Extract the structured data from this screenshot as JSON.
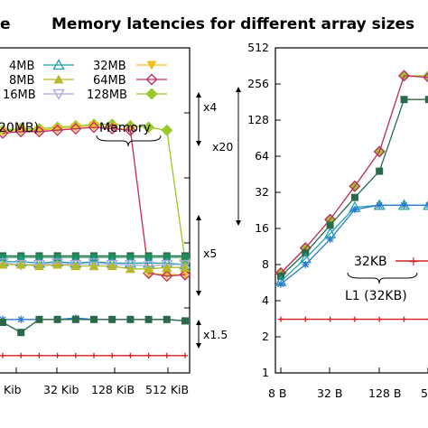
{
  "chart_data": {
    "type": "line",
    "title": "Memory latencies for different array sizes",
    "title_prefix": "e",
    "colors": {
      "4MB": "#1f8a5a",
      "8MB": "#b5b82a",
      "16MB": "#d9d23a",
      "32MB": "#1fa0b0",
      "64MB": "#c0306a",
      "128MB": "#a8a8e0",
      "gold": "#f0c020",
      "green": "#9ac82a",
      "dark": "#2a6a4a",
      "blue": "#2a7ad0",
      "red": "#d02020"
    },
    "left_panel": {
      "x_ticks": [
        "Kib",
        "32 Kib",
        "128 KiB",
        "512 KiB"
      ],
      "annotations": [
        "20MB)",
        "Memory"
      ],
      "side_annotations": [
        "x4",
        "x20",
        "x5",
        "x1.5"
      ],
      "legend": [
        {
          "name": "4MB",
          "marker": "square"
        },
        {
          "name": "8MB",
          "marker": "triangle"
        },
        {
          "name": "16MB",
          "marker": "square-open"
        },
        {
          "name": "32MB",
          "marker": "triangle-open"
        },
        {
          "name": "64MB",
          "marker": "diamond-open"
        },
        {
          "name": "128MB",
          "marker": "triangle-down-open"
        },
        {
          "name": "",
          "marker": "triangle-down"
        },
        {
          "name": "",
          "marker": "diamond"
        }
      ],
      "series": [
        {
          "key": "green",
          "values": [
            168,
            169,
            169,
            170,
            171,
            172,
            172,
            171,
            170,
            168,
            78
          ]
        },
        {
          "key": "gold",
          "values": [
            167,
            168,
            168,
            169,
            170,
            171,
            170,
            168,
            69,
            68,
            68
          ]
        },
        {
          "key": "64MB",
          "values": [
            166,
            167,
            167,
            168,
            169,
            170,
            169,
            168,
            69,
            67,
            68
          ]
        },
        {
          "key": "dark",
          "values": [
            81,
            81,
            81,
            81,
            81,
            81,
            81,
            81,
            81,
            81,
            81
          ]
        },
        {
          "key": "4MB",
          "values": [
            80,
            80,
            80,
            80,
            80,
            80,
            80,
            80,
            80,
            80,
            80
          ]
        },
        {
          "key": "32MB",
          "values": [
            77,
            77,
            76,
            77,
            76,
            77,
            76,
            76,
            76,
            76,
            75
          ]
        },
        {
          "key": "128MB",
          "values": [
            76,
            75,
            75,
            76,
            75,
            76,
            75,
            75,
            74,
            75,
            75
          ]
        },
        {
          "key": "8MB",
          "values": [
            75,
            75,
            74,
            75,
            74,
            74,
            74,
            72,
            72,
            73,
            73
          ]
        },
        {
          "key": "blue",
          "values": [
            37,
            37,
            37,
            37,
            38,
            37,
            37,
            37,
            37,
            37,
            36
          ]
        },
        {
          "key": "dark",
          "values": [
            35,
            28,
            37,
            37,
            37,
            37,
            37,
            37,
            37,
            37,
            36
          ]
        },
        {
          "key": "red",
          "values": [
            12,
            12,
            12,
            12,
            12,
            12,
            12,
            12,
            12,
            12,
            12
          ]
        }
      ]
    },
    "right_panel": {
      "x_ticks": [
        "8 B",
        "32 B",
        "128 B",
        "5"
      ],
      "y_ticks": [
        "1",
        "2",
        "4",
        "8",
        "16",
        "32",
        "64",
        "128",
        "256",
        "512"
      ],
      "y_scale": "log2",
      "ylim": [
        1,
        512
      ],
      "annotations": [
        "32KB",
        "L1 (32KB)"
      ],
      "series": [
        {
          "key": "green",
          "x": [
            1,
            2,
            3,
            4,
            5,
            6,
            7
          ],
          "values": [
            6.8,
            11,
            19,
            36,
            70,
            300,
            300
          ]
        },
        {
          "key": "64MB",
          "x": [
            1,
            2,
            3,
            4,
            5,
            6,
            7
          ],
          "values": [
            6.8,
            11,
            19,
            36,
            70,
            300,
            290
          ]
        },
        {
          "key": "dark",
          "x": [
            1,
            2,
            3,
            4,
            5,
            6,
            7
          ],
          "values": [
            6.4,
            10,
            17,
            29,
            48,
            190,
            190
          ]
        },
        {
          "key": "32MB",
          "x": [
            1,
            2,
            3,
            4,
            5,
            6,
            7
          ],
          "values": [
            5.8,
            9,
            14.5,
            24,
            25,
            25,
            25
          ]
        },
        {
          "key": "blue",
          "x": [
            1,
            2,
            3,
            4,
            5,
            6,
            7
          ],
          "values": [
            5.5,
            8,
            13,
            23,
            25,
            25,
            25
          ]
        },
        {
          "key": "red",
          "x": [
            1,
            2,
            3,
            4,
            5,
            6,
            7
          ],
          "values": [
            2.8,
            2.8,
            2.8,
            2.8,
            2.8,
            2.8,
            2.8
          ]
        }
      ]
    }
  }
}
